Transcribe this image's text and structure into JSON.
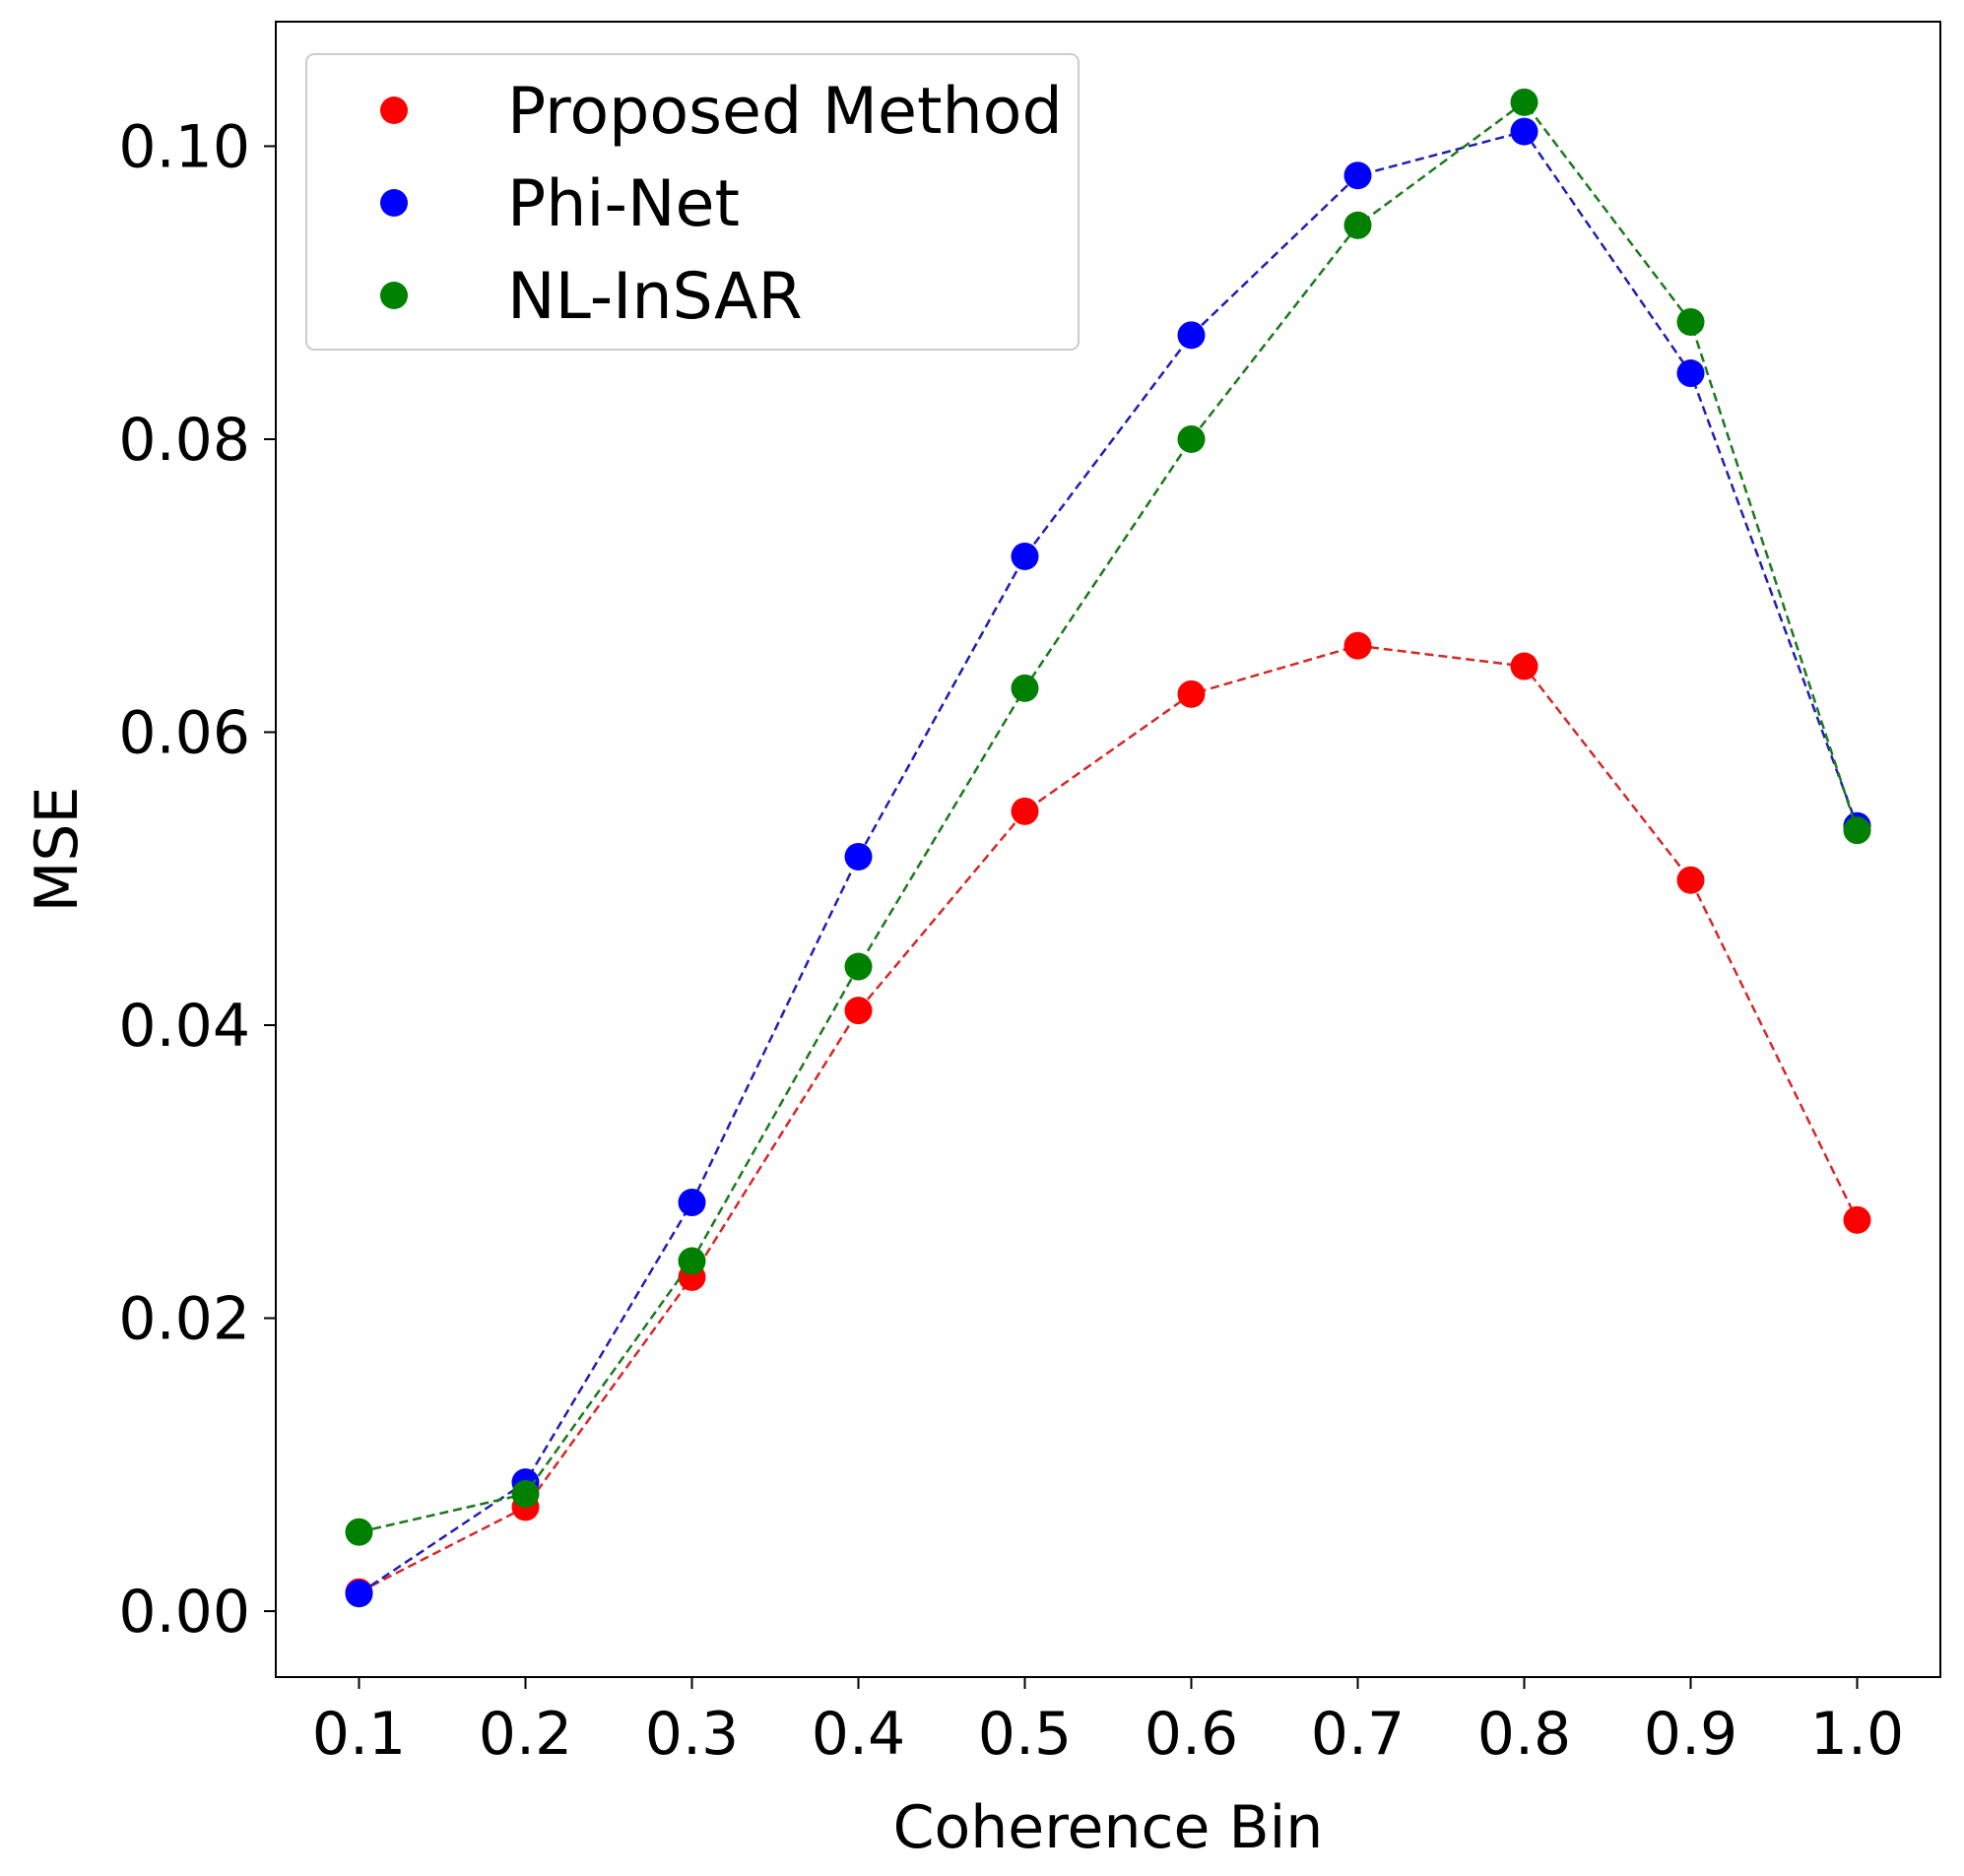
{
  "chart_data": {
    "type": "line",
    "title": "",
    "xlabel": "Coherence Bin",
    "ylabel": "MSE",
    "x": [
      0.1,
      0.2,
      0.3,
      0.4,
      0.5,
      0.6,
      0.7,
      0.8,
      0.9,
      1.0
    ],
    "xtick_labels": [
      "0.1",
      "0.2",
      "0.3",
      "0.4",
      "0.5",
      "0.6",
      "0.7",
      "0.8",
      "0.9",
      "1.0"
    ],
    "yticks": [
      0.0,
      0.02,
      0.04,
      0.06,
      0.08,
      0.1
    ],
    "ytick_labels": [
      "0.00",
      "0.02",
      "0.04",
      "0.06",
      "0.08",
      "0.10"
    ],
    "xlim": [
      0.05,
      1.05
    ],
    "ylim": [
      -0.0045,
      0.1085
    ],
    "grid": false,
    "legend_position": "top-left",
    "line_style": "dashed",
    "series": [
      {
        "name": "Proposed Method",
        "color": "#ff0000",
        "line_color": "#d62728",
        "values": [
          0.0013,
          0.0071,
          0.0228,
          0.041,
          0.0546,
          0.0626,
          0.0659,
          0.0645,
          0.0499,
          0.0267
        ]
      },
      {
        "name": "Phi-Net",
        "color": "#0000ff",
        "line_color": "#1f1fb4",
        "values": [
          0.0012,
          0.0088,
          0.0279,
          0.0515,
          0.072,
          0.0871,
          0.098,
          0.101,
          0.0845,
          0.0536
        ]
      },
      {
        "name": "NL-InSAR",
        "color": "#008000",
        "line_color": "#1a7a1a",
        "values": [
          0.0054,
          0.008,
          0.0239,
          0.044,
          0.063,
          0.08,
          0.0946,
          0.103,
          0.088,
          0.0533
        ]
      }
    ]
  }
}
